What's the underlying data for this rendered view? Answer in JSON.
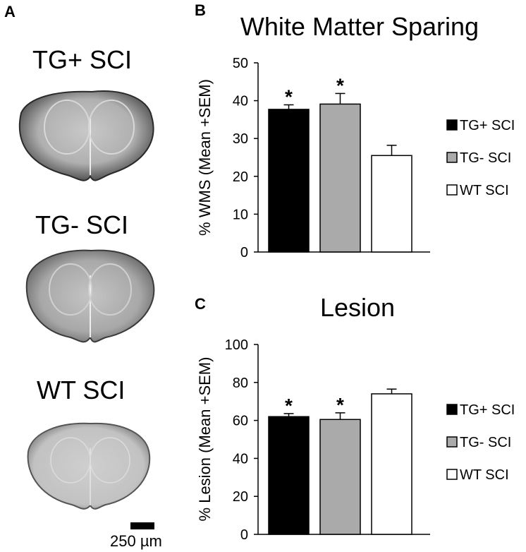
{
  "panel_a": {
    "letter": "A",
    "sections": [
      {
        "label": "TG+ SCI"
      },
      {
        "label": "TG- SCI"
      },
      {
        "label": "WT SCI"
      }
    ],
    "scale_bar_label": "250 µm"
  },
  "chart_data": [
    {
      "panel": "B",
      "type": "bar",
      "title": "White Matter Sparing",
      "ylabel": "% WMS (Mean +SEM)",
      "xlabel": "",
      "categories": [
        "TG+ SCI",
        "TG- SCI",
        "WT SCI"
      ],
      "values": [
        37.7,
        39.1,
        25.5
      ],
      "errors": [
        1.2,
        2.8,
        2.7
      ],
      "significance": [
        "*",
        "*",
        ""
      ],
      "ylim": [
        0,
        50
      ],
      "yticks": [
        0,
        10,
        20,
        30,
        40,
        50
      ],
      "colors": [
        "#000000",
        "#aaaaaa",
        "#ffffff"
      ],
      "grid": false,
      "legend": {
        "placement": "right",
        "entries": [
          "TG+ SCI",
          "TG- SCI",
          "WT SCI"
        ]
      }
    },
    {
      "panel": "C",
      "type": "bar",
      "title": "Lesion",
      "ylabel": "% Lesion (Mean +SEM)",
      "xlabel": "",
      "categories": [
        "TG+ SCI",
        "TG- SCI",
        "WT SCI"
      ],
      "values": [
        62,
        60.5,
        74
      ],
      "errors": [
        1.6,
        3.5,
        2.5
      ],
      "significance": [
        "*",
        "*",
        ""
      ],
      "ylim": [
        0,
        100
      ],
      "yticks": [
        0,
        20,
        40,
        60,
        80,
        100
      ],
      "colors": [
        "#000000",
        "#aaaaaa",
        "#ffffff"
      ],
      "grid": false,
      "legend": {
        "placement": "right",
        "entries": [
          "TG+ SCI",
          "TG- SCI",
          "WT SCI"
        ]
      }
    }
  ]
}
